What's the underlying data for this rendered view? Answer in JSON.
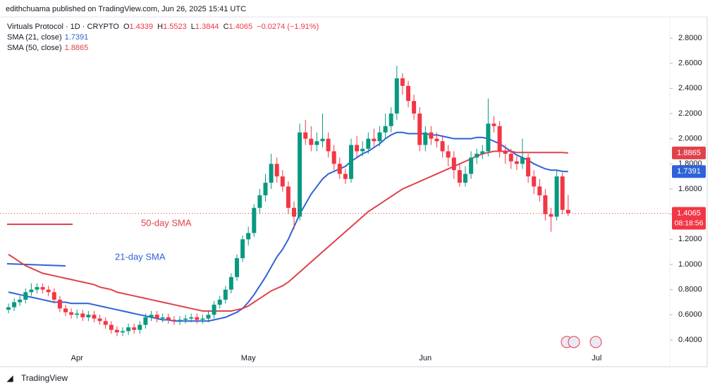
{
  "header": {
    "publisher": "edithchuama published on TradingView.com, Jun 26, 2025 15:41 UTC"
  },
  "footer": {
    "brand": "TradingView"
  },
  "chart_data": {
    "type": "candlestick",
    "title": "Virtuals Protocol · 1D · CRYPTO",
    "ohlc_labels": [
      "O",
      "H",
      "L",
      "C"
    ],
    "change": "−0.0274 (−1.91%)",
    "countdown": "08:18:56",
    "up_color": "#089981",
    "down_color": "#f23645",
    "candles": [
      [
        0.64,
        0.69,
        0.61,
        0.66
      ],
      [
        0.66,
        0.73,
        0.63,
        0.7
      ],
      [
        0.7,
        0.75,
        0.67,
        0.72
      ],
      [
        0.72,
        0.81,
        0.69,
        0.78
      ],
      [
        0.78,
        0.85,
        0.75,
        0.8
      ],
      [
        0.8,
        0.85,
        0.77,
        0.82
      ],
      [
        0.82,
        0.85,
        0.77,
        0.8
      ],
      [
        0.8,
        0.83,
        0.75,
        0.78
      ],
      [
        0.78,
        0.81,
        0.69,
        0.72
      ],
      [
        0.72,
        0.75,
        0.62,
        0.65
      ],
      [
        0.65,
        0.68,
        0.59,
        0.62
      ],
      [
        0.62,
        0.65,
        0.57,
        0.6
      ],
      [
        0.6,
        0.64,
        0.57,
        0.61
      ],
      [
        0.61,
        0.64,
        0.55,
        0.58
      ],
      [
        0.58,
        0.63,
        0.55,
        0.6
      ],
      [
        0.6,
        0.63,
        0.54,
        0.57
      ],
      [
        0.57,
        0.6,
        0.52,
        0.55
      ],
      [
        0.55,
        0.58,
        0.49,
        0.52
      ],
      [
        0.52,
        0.55,
        0.45,
        0.48
      ],
      [
        0.48,
        0.51,
        0.43,
        0.46
      ],
      [
        0.46,
        0.5,
        0.43,
        0.47
      ],
      [
        0.47,
        0.53,
        0.44,
        0.5
      ],
      [
        0.5,
        0.53,
        0.45,
        0.48
      ],
      [
        0.48,
        0.55,
        0.45,
        0.52
      ],
      [
        0.52,
        0.61,
        0.49,
        0.58
      ],
      [
        0.58,
        0.63,
        0.55,
        0.6
      ],
      [
        0.6,
        0.63,
        0.54,
        0.57
      ],
      [
        0.57,
        0.61,
        0.54,
        0.58
      ],
      [
        0.58,
        0.61,
        0.53,
        0.56
      ],
      [
        0.56,
        0.59,
        0.52,
        0.55
      ],
      [
        0.55,
        0.59,
        0.52,
        0.56
      ],
      [
        0.56,
        0.6,
        0.53,
        0.57
      ],
      [
        0.57,
        0.61,
        0.54,
        0.58
      ],
      [
        0.58,
        0.61,
        0.53,
        0.56
      ],
      [
        0.56,
        0.6,
        0.53,
        0.57
      ],
      [
        0.57,
        0.63,
        0.54,
        0.6
      ],
      [
        0.6,
        0.71,
        0.57,
        0.68
      ],
      [
        0.68,
        0.75,
        0.65,
        0.72
      ],
      [
        0.72,
        0.83,
        0.69,
        0.8
      ],
      [
        0.8,
        0.93,
        0.77,
        0.9
      ],
      [
        0.9,
        1.08,
        0.87,
        1.05
      ],
      [
        1.05,
        1.23,
        1.02,
        1.2
      ],
      [
        1.2,
        1.3,
        1.15,
        1.25
      ],
      [
        1.25,
        1.48,
        1.22,
        1.45
      ],
      [
        1.45,
        1.6,
        1.4,
        1.55
      ],
      [
        1.55,
        1.72,
        1.5,
        1.65
      ],
      [
        1.65,
        1.88,
        1.6,
        1.8
      ],
      [
        1.8,
        1.85,
        1.65,
        1.7
      ],
      [
        1.7,
        1.75,
        1.58,
        1.62
      ],
      [
        1.62,
        1.66,
        1.4,
        1.45
      ],
      [
        1.45,
        1.5,
        1.28,
        1.38
      ],
      [
        1.38,
        2.12,
        1.35,
        2.05
      ],
      [
        2.05,
        2.15,
        1.95,
        2.0
      ],
      [
        2.0,
        2.1,
        1.9,
        1.95
      ],
      [
        1.95,
        2.05,
        1.9,
        1.98
      ],
      [
        1.98,
        2.2,
        1.93,
        2.0
      ],
      [
        2.0,
        2.05,
        1.85,
        1.9
      ],
      [
        1.9,
        1.95,
        1.75,
        1.8
      ],
      [
        1.8,
        1.85,
        1.68,
        1.72
      ],
      [
        1.72,
        1.76,
        1.64,
        1.68
      ],
      [
        1.68,
        2.0,
        1.65,
        1.95
      ],
      [
        1.95,
        2.02,
        1.85,
        1.9
      ],
      [
        1.9,
        1.98,
        1.86,
        1.92
      ],
      [
        1.92,
        2.05,
        1.88,
        2.0
      ],
      [
        2.0,
        2.08,
        1.94,
        1.98
      ],
      [
        1.98,
        2.1,
        1.94,
        2.05
      ],
      [
        2.05,
        2.2,
        2.0,
        2.1
      ],
      [
        2.1,
        2.25,
        2.05,
        2.2
      ],
      [
        2.2,
        2.58,
        2.15,
        2.48
      ],
      [
        2.48,
        2.52,
        2.35,
        2.42
      ],
      [
        2.42,
        2.46,
        2.25,
        2.3
      ],
      [
        2.3,
        2.35,
        2.15,
        2.2
      ],
      [
        2.2,
        2.25,
        1.9,
        1.95
      ],
      [
        1.95,
        2.1,
        1.9,
        2.05
      ],
      [
        2.05,
        2.1,
        1.95,
        2.0
      ],
      [
        2.0,
        2.05,
        1.93,
        1.98
      ],
      [
        1.98,
        2.02,
        1.85,
        1.9
      ],
      [
        1.9,
        1.95,
        1.78,
        1.85
      ],
      [
        1.85,
        1.9,
        1.68,
        1.75
      ],
      [
        1.75,
        1.8,
        1.62,
        1.65
      ],
      [
        1.65,
        1.78,
        1.62,
        1.72
      ],
      [
        1.72,
        1.9,
        1.68,
        1.85
      ],
      [
        1.85,
        1.92,
        1.8,
        1.88
      ],
      [
        1.88,
        1.95,
        1.84,
        1.9
      ],
      [
        1.9,
        2.32,
        1.86,
        2.12
      ],
      [
        2.12,
        2.18,
        2.05,
        2.1
      ],
      [
        2.1,
        2.14,
        1.85,
        1.9
      ],
      [
        1.9,
        1.95,
        1.8,
        1.88
      ],
      [
        1.88,
        1.92,
        1.76,
        1.82
      ],
      [
        1.82,
        1.86,
        1.75,
        1.8
      ],
      [
        1.8,
        2.0,
        1.76,
        1.85
      ],
      [
        1.85,
        1.88,
        1.65,
        1.7
      ],
      [
        1.7,
        1.75,
        1.56,
        1.62
      ],
      [
        1.62,
        1.68,
        1.5,
        1.55
      ],
      [
        1.55,
        1.6,
        1.35,
        1.4
      ],
      [
        1.4,
        1.45,
        1.26,
        1.38
      ],
      [
        1.38,
        1.75,
        1.35,
        1.7
      ],
      [
        1.7,
        1.73,
        1.4,
        1.4339
      ],
      [
        1.4339,
        1.5523,
        1.3844,
        1.4065
      ]
    ],
    "series": [
      {
        "name": "SMA (21, close)",
        "color": "#2f62d8",
        "values": [
          0.78,
          0.77,
          0.76,
          0.75,
          0.74,
          0.73,
          0.72,
          0.71,
          0.7,
          0.7,
          0.7,
          0.69,
          0.69,
          0.69,
          0.69,
          0.68,
          0.67,
          0.66,
          0.65,
          0.64,
          0.63,
          0.62,
          0.61,
          0.6,
          0.59,
          0.58,
          0.57,
          0.56,
          0.56,
          0.55,
          0.55,
          0.55,
          0.55,
          0.55,
          0.55,
          0.55,
          0.56,
          0.57,
          0.58,
          0.6,
          0.62,
          0.65,
          0.7,
          0.76,
          0.83,
          0.9,
          0.98,
          1.06,
          1.12,
          1.2,
          1.3,
          1.4,
          1.48,
          1.56,
          1.62,
          1.68,
          1.72,
          1.74,
          1.76,
          1.78,
          1.82,
          1.85,
          1.88,
          1.9,
          1.93,
          1.96,
          2.0,
          2.03,
          2.05,
          2.05,
          2.04,
          2.04,
          2.04,
          2.04,
          2.03,
          2.03,
          2.02,
          2.01,
          2.0,
          2.0,
          2.0,
          2.0,
          2.01,
          2.01,
          2.0,
          1.98,
          1.96,
          1.93,
          1.9,
          1.87,
          1.85,
          1.83,
          1.8,
          1.78,
          1.76,
          1.75,
          1.75,
          1.74,
          1.7391
        ]
      },
      {
        "name": "SMA (50, close)",
        "color": "#e0424b",
        "values": [
          1.08,
          1.05,
          1.02,
          0.99,
          0.97,
          0.95,
          0.93,
          0.92,
          0.91,
          0.9,
          0.89,
          0.88,
          0.87,
          0.86,
          0.85,
          0.84,
          0.82,
          0.81,
          0.8,
          0.78,
          0.77,
          0.76,
          0.75,
          0.74,
          0.73,
          0.72,
          0.71,
          0.7,
          0.69,
          0.68,
          0.67,
          0.66,
          0.65,
          0.64,
          0.63,
          0.63,
          0.63,
          0.63,
          0.63,
          0.63,
          0.64,
          0.65,
          0.67,
          0.7,
          0.73,
          0.76,
          0.79,
          0.81,
          0.83,
          0.86,
          0.9,
          0.94,
          0.98,
          1.02,
          1.06,
          1.1,
          1.14,
          1.18,
          1.22,
          1.26,
          1.3,
          1.34,
          1.38,
          1.42,
          1.45,
          1.48,
          1.51,
          1.54,
          1.57,
          1.6,
          1.62,
          1.64,
          1.66,
          1.68,
          1.7,
          1.72,
          1.74,
          1.76,
          1.78,
          1.8,
          1.82,
          1.84,
          1.86,
          1.88,
          1.89,
          1.9,
          1.9,
          1.9,
          1.9,
          1.89,
          1.89,
          1.89,
          1.89,
          1.89,
          1.89,
          1.89,
          1.89,
          1.89,
          1.8865
        ]
      }
    ],
    "annotations": [
      {
        "text": "50-day SMA",
        "series": 1
      },
      {
        "text": "21-day SMA",
        "series": 0
      }
    ],
    "x_labels": [
      {
        "index": 12,
        "label": "Apr"
      },
      {
        "index": 42,
        "label": "May"
      },
      {
        "index": 73,
        "label": "Jun"
      },
      {
        "index": 103,
        "label": "Jul"
      }
    ],
    "ylim": [
      0.4,
      2.8
    ],
    "yticks": [
      {
        "value": 0.4,
        "label": "0.4000"
      },
      {
        "value": 0.6,
        "label": "0.6000"
      },
      {
        "value": 0.8,
        "label": "0.8000"
      },
      {
        "value": 1,
        "label": "1.0000"
      },
      {
        "value": 1.2,
        "label": "1.2000"
      },
      {
        "value": 1.4,
        "label": "1.4000"
      },
      {
        "value": 1.6,
        "label": "1.6000"
      },
      {
        "value": 1.8,
        "label": "1.8000"
      },
      {
        "value": 2,
        "label": "2.0000"
      },
      {
        "value": 2.2,
        "label": "2.2000"
      },
      {
        "value": 2.4,
        "label": "2.4000"
      },
      {
        "value": 2.6,
        "label": "2.6000"
      },
      {
        "value": 2.8,
        "label": "2.8000"
      }
    ]
  }
}
